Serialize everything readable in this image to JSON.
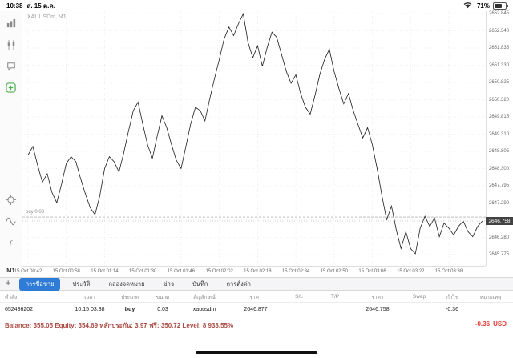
{
  "status_bar": {
    "time": "10:38",
    "date": "ส. 15 ต.ค.",
    "battery": "71%",
    "icons": [
      "wifi-icon",
      "battery-icon"
    ]
  },
  "sidebar": {
    "icons": [
      "bar-chart-icon",
      "candlestick-chart-icon",
      "chat-icon",
      "new-order-icon",
      "crosshair-icon",
      "indicators-icon",
      "functions-icon"
    ],
    "timeframe": "M1"
  },
  "chart": {
    "symbol": "XAUUSDm, M1",
    "position_label": "buy 0.03",
    "current_price": "2646.758"
  },
  "chart_data": {
    "type": "line",
    "title": "XAUUSDm, M1",
    "ylim": [
      2645.775,
      2652.845
    ],
    "y_ticks": [
      2652.845,
      2652.34,
      2651.835,
      2651.33,
      2650.825,
      2650.32,
      2649.815,
      2649.31,
      2648.805,
      2648.3,
      2647.795,
      2647.29,
      2646.785,
      2646.28,
      2645.775
    ],
    "x_ticks": [
      "15 Oct 00:42",
      "15 Oct 00:58",
      "15 Oct 01:14",
      "15 Oct 01:30",
      "15 Oct 01:46",
      "15 Oct 02:02",
      "15 Oct 02:18",
      "15 Oct 02:34",
      "15 Oct 02:50",
      "15 Oct 03:06",
      "15 Oct 03:22",
      "15 Oct 03:38"
    ],
    "x": [
      0,
      2,
      4,
      6,
      8,
      10,
      12,
      14,
      16,
      18,
      20,
      22,
      24,
      26,
      28,
      30,
      32,
      34,
      36,
      38,
      40,
      42,
      44,
      46,
      48,
      50,
      52,
      54,
      56,
      58,
      60,
      62,
      64,
      66,
      68,
      70,
      72,
      74,
      76,
      78,
      80,
      82,
      84,
      86,
      88,
      90,
      92,
      94,
      96,
      98,
      100,
      102,
      104,
      106,
      108,
      110,
      112,
      114,
      116,
      118,
      120,
      122,
      124,
      126,
      128,
      130,
      132,
      134,
      136,
      138,
      140,
      142,
      144,
      146,
      148,
      150,
      152,
      154,
      156,
      158,
      160,
      162,
      164,
      166,
      168,
      170,
      172,
      174,
      176,
      178,
      180,
      182,
      184,
      186,
      188,
      190
    ],
    "y": [
      2648.7,
      2648.95,
      2648.4,
      2647.9,
      2648.15,
      2647.6,
      2647.3,
      2647.85,
      2648.45,
      2648.65,
      2648.5,
      2648.0,
      2647.55,
      2647.15,
      2646.95,
      2647.5,
      2648.3,
      2648.65,
      2648.5,
      2648.2,
      2648.75,
      2649.4,
      2650.0,
      2650.25,
      2649.6,
      2649.0,
      2648.6,
      2649.25,
      2649.85,
      2649.5,
      2649.0,
      2648.55,
      2648.3,
      2648.95,
      2649.6,
      2650.1,
      2650.0,
      2649.7,
      2650.35,
      2650.95,
      2651.5,
      2652.1,
      2652.45,
      2652.2,
      2652.55,
      2652.84,
      2652.0,
      2651.55,
      2651.9,
      2651.3,
      2651.85,
      2652.3,
      2652.15,
      2651.65,
      2651.15,
      2650.8,
      2651.05,
      2650.5,
      2650.1,
      2649.9,
      2650.45,
      2651.05,
      2651.5,
      2651.8,
      2651.15,
      2650.65,
      2650.2,
      2650.5,
      2650.0,
      2649.6,
      2649.2,
      2649.5,
      2649.0,
      2648.3,
      2647.5,
      2646.8,
      2647.2,
      2646.5,
      2645.95,
      2646.45,
      2645.95,
      2645.8,
      2646.55,
      2646.9,
      2646.6,
      2646.85,
      2646.3,
      2646.7,
      2646.55,
      2646.35,
      2646.6,
      2646.758,
      2646.45,
      2646.3,
      2646.6,
      2646.758
    ],
    "buy_price": 2646.877,
    "current_price": 2646.758,
    "grid": true,
    "legend": "none"
  },
  "tabbar": {
    "add": "+",
    "tabs": [
      {
        "label": "การซื้อขาย",
        "active": true
      },
      {
        "label": "ประวัติ",
        "active": false
      },
      {
        "label": "กล่องจดหมาย",
        "active": false
      },
      {
        "label": "ข่าว",
        "active": false
      },
      {
        "label": "บันทึก",
        "active": false
      },
      {
        "label": "การตั้งค่า",
        "active": false
      }
    ]
  },
  "table": {
    "headers": [
      "คำสั่ง",
      "เวลา",
      "ประเภท",
      "ขนาด",
      "สัญลักษณ์",
      "ราคา",
      "S/L",
      "T/P",
      "ราคา",
      "Swap",
      "กำไร",
      "หมายเหตุ"
    ],
    "row": {
      "order": "652436202",
      "time": "10.15 03:38",
      "type": "buy",
      "volume": "0.03",
      "symbol": "xauusdm",
      "open_price": "2646.877",
      "sl": "",
      "tp": "",
      "price": "2646.758",
      "swap": "",
      "profit": "-0.36",
      "comment": ""
    }
  },
  "summary": {
    "balance_line": "Balance: 355.05 Equity: 354.69 หลักประกัน: 3.97 ฟรี: 350.72 Level: 8 933.55%",
    "profit": "-0.36",
    "currency": "USD"
  },
  "colors": {
    "accent_blue": "#2f7cd6",
    "loss_red": "#e53935",
    "price_tag_bg": "#424242"
  }
}
